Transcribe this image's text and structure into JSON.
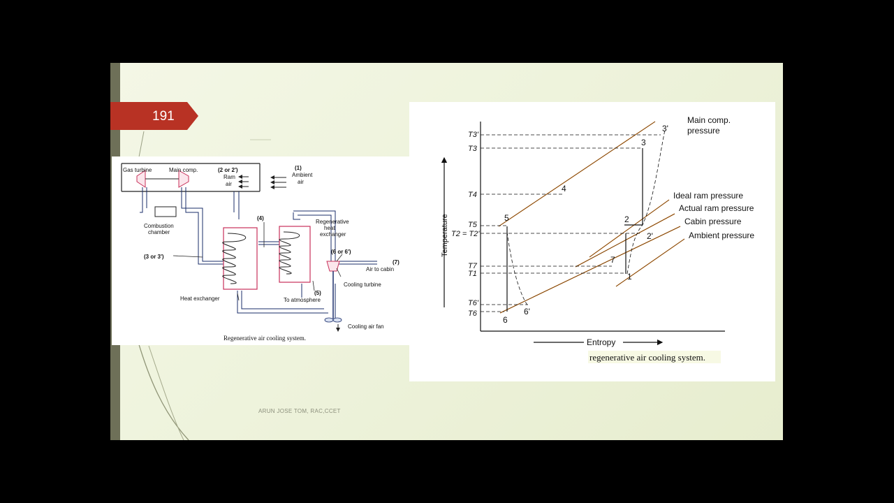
{
  "slide": {
    "number": "191",
    "footer": "ARUN JOSE TOM, RAC,CCET",
    "colors": {
      "tag": "#b83224",
      "band": "#6e7058",
      "background": "#f1f5e2",
      "orange_line": "#e0811f"
    }
  },
  "schematic": {
    "labels": {
      "gas_turbine": "Gas turbine",
      "main_comp": "Main comp.",
      "ram_point": "(2 or 2')",
      "ram": "Ram",
      "air": "air",
      "ambient_point": "(1)",
      "ambient": "Ambient",
      "ambient_air": "air",
      "combustion": "Combustion",
      "chamber": "chamber",
      "point_4": "(4)",
      "regen_1": "Regenerative",
      "regen_2": "heat",
      "regen_3": "exchanger",
      "point_3": "(3 or 3')",
      "point_6": "(6 or 6')",
      "point_7": "(7)",
      "air_to_cabin": "Air to cabin",
      "cooling_turbine": "Cooling turbine",
      "point_5": "(5)",
      "to_atmosphere": "To atmosphere",
      "heat_exchanger": "Heat exchanger",
      "cooling_fan": "Cooling air fan"
    },
    "caption": "Regenerative air cooling system."
  },
  "ts_diagram": {
    "y_axis_label": "Temperature",
    "x_axis_label": "Entropy",
    "caption": "regenerative air cooling system.",
    "curve_labels": {
      "main_comp_1": "Main comp.",
      "main_comp_2": "pressure",
      "ideal_ram": "Ideal ram pressure",
      "actual_ram": "Actual ram pressure",
      "cabin": "Cabin pressure",
      "ambient": "Ambient pressure"
    },
    "temperature_labels": {
      "t3p": "T3'",
      "t3": "T3",
      "t4": "T4",
      "t5": "T5",
      "t2": "T2 = T2'",
      "t7": "T7",
      "t1": "T1",
      "t6p": "T6'",
      "t6": "T6"
    },
    "point_labels": {
      "p1": "1",
      "p2": "2",
      "p2p": "2'",
      "p3": "3",
      "p3p": "3'",
      "p4": "4",
      "p5": "5",
      "p6": "6",
      "p6p": "6'",
      "p7": "7"
    }
  }
}
